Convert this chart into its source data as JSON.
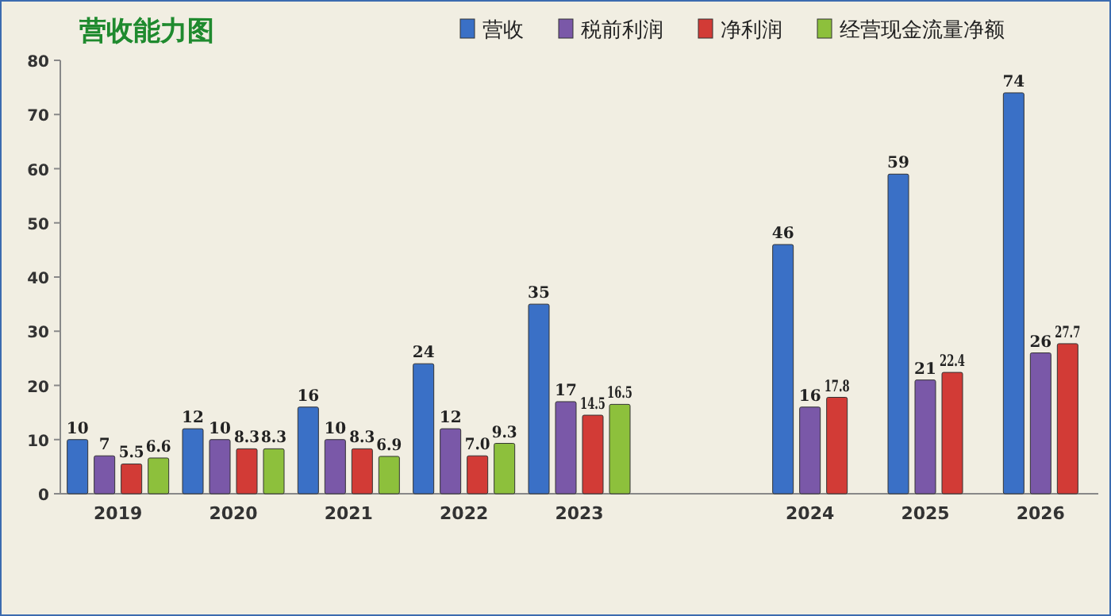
{
  "chart_data": {
    "type": "bar",
    "title": "营收能力图",
    "categories": [
      "2019",
      "2020",
      "2021",
      "2022",
      "2023",
      null,
      "2024",
      "2025",
      "2026"
    ],
    "series": [
      {
        "name": "营收",
        "color": "#3a70c6",
        "values": [
          10,
          12,
          16,
          24,
          35,
          null,
          46,
          59,
          74
        ],
        "value_labels": [
          "10",
          "12",
          "16",
          "24",
          "35",
          null,
          "46",
          "59",
          "74"
        ]
      },
      {
        "name": "税前利润",
        "color": "#7a58a8",
        "values": [
          7,
          10,
          10,
          12,
          17,
          null,
          16,
          21,
          26
        ],
        "value_labels": [
          "7",
          "10",
          "10",
          "12",
          "17",
          null,
          "16",
          "21",
          "26"
        ]
      },
      {
        "name": "净利润",
        "color": "#d23b36",
        "values": [
          5.5,
          8.3,
          8.3,
          7.0,
          14.5,
          null,
          17.8,
          22.4,
          27.7
        ],
        "value_labels": [
          "5.5",
          "8.3",
          "8.3",
          "7.0",
          "14.5",
          null,
          "17.8",
          "22.4",
          "27.7"
        ]
      },
      {
        "name": "经营现金流量净额",
        "color": "#8dc03c",
        "values": [
          6.6,
          8.3,
          6.9,
          9.3,
          16.5,
          null,
          null,
          null,
          null
        ],
        "value_labels": [
          "6.6",
          "8.3",
          "6.9",
          "9.3",
          "16.5",
          null,
          null,
          null,
          null
        ]
      }
    ],
    "ylim": [
      0,
      80
    ],
    "yticks": [
      0,
      10,
      20,
      30,
      40,
      50,
      60,
      70,
      80
    ],
    "grid": false,
    "legend": "top"
  }
}
